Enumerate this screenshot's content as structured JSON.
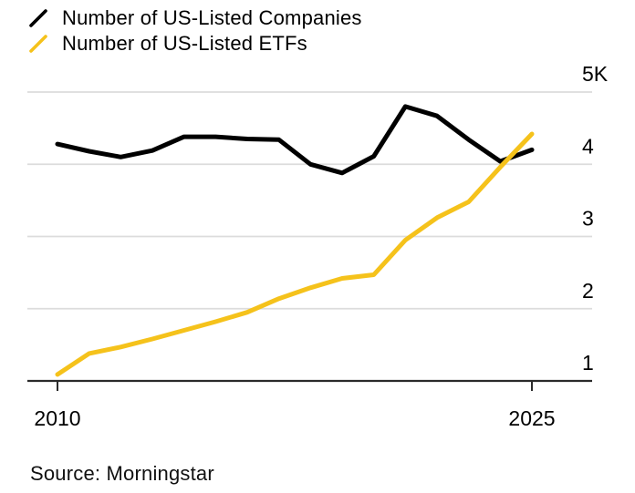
{
  "legend": {
    "items": [
      {
        "label": "Number of US-Listed Companies",
        "color": "#000000",
        "swatch_icon": "diagonal-line"
      },
      {
        "label": "Number of US-Listed ETFs",
        "color": "#F5C21B",
        "swatch_icon": "diagonal-line"
      }
    ]
  },
  "source": "Source: Morningstar",
  "chart_data": {
    "type": "line",
    "x": [
      2010,
      2011,
      2012,
      2013,
      2014,
      2015,
      2016,
      2017,
      2018,
      2019,
      2020,
      2021,
      2022,
      2023,
      2024,
      2025
    ],
    "series": [
      {
        "name": "Number of US-Listed Companies",
        "color": "#000000",
        "values": [
          4.28,
          4.18,
          4.1,
          4.19,
          4.38,
          4.38,
          4.35,
          4.34,
          4.0,
          3.88,
          4.11,
          4.8,
          4.67,
          4.34,
          4.04,
          4.2
        ]
      },
      {
        "name": "Number of US-Listed ETFs",
        "color": "#F5C21B",
        "values": [
          1.09,
          1.38,
          1.47,
          1.58,
          1.7,
          1.82,
          1.95,
          2.14,
          2.29,
          2.42,
          2.47,
          2.95,
          3.26,
          3.48,
          3.96,
          4.42
        ]
      }
    ],
    "unit": "thousands",
    "xlim": [
      2010,
      2025
    ],
    "ylim": [
      1,
      5
    ],
    "x_ticks": [
      {
        "value": 2010,
        "label": "2010"
      },
      {
        "value": 2025,
        "label": "2025"
      }
    ],
    "y_ticks": [
      {
        "value": 1,
        "label": "1"
      },
      {
        "value": 2,
        "label": "2"
      },
      {
        "value": 3,
        "label": "3"
      },
      {
        "value": 4,
        "label": "4"
      },
      {
        "value": 5,
        "label": "5K"
      }
    ],
    "grid": true,
    "legend_position": "top-left",
    "y_labels_position": "right",
    "gridline_color": "#DCDCDC",
    "axis_color": "#2B2B2B",
    "text_color": "#000000",
    "background_color": "#FFFFFF"
  }
}
